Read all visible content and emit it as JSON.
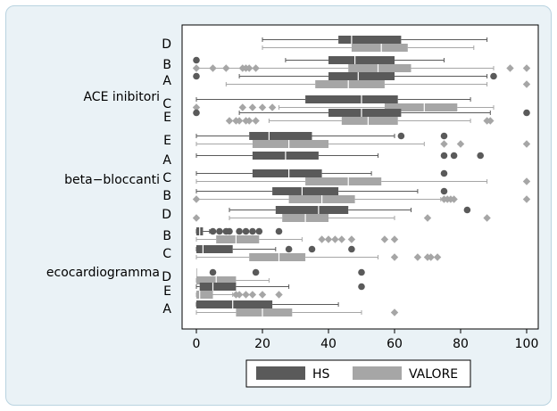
{
  "chart_data": {
    "type": "boxplot",
    "orientation": "horizontal",
    "x_ticks": [
      0,
      20,
      40,
      60,
      80,
      100
    ],
    "xlim": [
      -4,
      103
    ],
    "grid": false,
    "legend": {
      "position": "bottom",
      "entries": [
        {
          "label": "HS",
          "color": "#5a5a5a"
        },
        {
          "label": "VALORE",
          "color": "#a6a6a6"
        }
      ]
    },
    "series_colors": {
      "HS": "#5a5a5a",
      "VALORE": "#a6a6a6"
    },
    "groups": [
      {
        "name": "ACE inibitori",
        "categories": [
          {
            "label": "D",
            "HS": {
              "wl": 20,
              "q1": 43,
              "med": 47,
              "q3": 62,
              "wh": 88,
              "outliers": []
            },
            "VALORE": {
              "wl": 20,
              "q1": 47,
              "med": 56,
              "q3": 64,
              "wh": 84,
              "outliers": []
            }
          },
          {
            "label": "B",
            "HS": {
              "wl": 27,
              "q1": 40,
              "med": 48,
              "q3": 60,
              "wh": 75,
              "outliers": [
                0
              ]
            },
            "VALORE": {
              "wl": 0,
              "q1": 46,
              "med": 55,
              "q3": 65,
              "wh": 90,
              "outliers": [
                0,
                5,
                9,
                14,
                15,
                16,
                18,
                95,
                100
              ]
            }
          },
          {
            "label": "A",
            "HS": {
              "wl": 13,
              "q1": 40,
              "med": 49,
              "q3": 60,
              "wh": 88,
              "outliers": [
                0,
                90
              ]
            },
            "VALORE": {
              "wl": 9,
              "q1": 36,
              "med": 46,
              "q3": 57,
              "wh": 88,
              "outliers": [
                100
              ]
            }
          },
          {
            "label": "C",
            "HS": {
              "wl": 0,
              "q1": 33,
              "med": 50,
              "q3": 61,
              "wh": 83,
              "outliers": []
            },
            "VALORE": {
              "wl": 25,
              "q1": 57,
              "med": 69,
              "q3": 79,
              "wh": 90,
              "outliers": [
                0,
                14,
                17,
                20,
                23
              ]
            }
          },
          {
            "label": "E",
            "HS": {
              "wl": 13,
              "q1": 40,
              "med": 50,
              "q3": 62,
              "wh": 89,
              "outliers": [
                0,
                100
              ]
            },
            "VALORE": {
              "wl": 22,
              "q1": 44,
              "med": 52,
              "q3": 61,
              "wh": 83,
              "outliers": [
                10,
                12,
                13,
                15,
                16,
                18,
                88,
                89
              ]
            }
          }
        ]
      },
      {
        "name": "beta−bloccanti",
        "categories": [
          {
            "label": "E",
            "HS": {
              "wl": 0,
              "q1": 16,
              "med": 22,
              "q3": 35,
              "wh": 60,
              "outliers": [
                62,
                75
              ]
            },
            "VALORE": {
              "wl": 0,
              "q1": 17,
              "med": 28,
              "q3": 40,
              "wh": 69,
              "outliers": [
                75,
                80,
                100
              ]
            }
          },
          {
            "label": "A",
            "HS": {
              "wl": 0,
              "q1": 17,
              "med": 27,
              "q3": 37,
              "wh": 55,
              "outliers": [
                75,
                78,
                86
              ]
            }
          },
          {
            "label": "C",
            "HS": {
              "wl": 0,
              "q1": 17,
              "med": 28,
              "q3": 38,
              "wh": 53,
              "outliers": [
                75
              ]
            },
            "VALORE": {
              "wl": 0,
              "q1": 33,
              "med": 46,
              "q3": 56,
              "wh": 88,
              "outliers": [
                100
              ]
            }
          },
          {
            "label": "B",
            "HS": {
              "wl": 0,
              "q1": 23,
              "med": 32,
              "q3": 43,
              "wh": 67,
              "outliers": [
                75
              ]
            },
            "VALORE": {
              "wl": 0,
              "q1": 28,
              "med": 38,
              "q3": 48,
              "wh": 74,
              "outliers": [
                0,
                75,
                76,
                77,
                78,
                100
              ]
            }
          },
          {
            "label": "D",
            "HS": {
              "wl": 10,
              "q1": 24,
              "med": 37,
              "q3": 46,
              "wh": 65,
              "outliers": [
                82
              ]
            },
            "VALORE": {
              "wl": 10,
              "q1": 26,
              "med": 33,
              "q3": 40,
              "wh": 60,
              "outliers": [
                0,
                70,
                88
              ]
            }
          }
        ]
      },
      {
        "name": "ecocardiogramma",
        "categories": [
          {
            "label": "B",
            "HS": {
              "wl": 0,
              "q1": 0,
              "med": 1,
              "q3": 2,
              "wh": 4,
              "outliers": [
                5,
                7,
                9,
                10,
                13,
                15,
                17,
                19,
                25
              ]
            },
            "VALORE": {
              "wl": 0,
              "q1": 6,
              "med": 12,
              "q3": 19,
              "wh": 32,
              "outliers": [
                38,
                40,
                42,
                44,
                47,
                57,
                60
              ]
            }
          },
          {
            "label": "C",
            "HS": {
              "wl": 0,
              "q1": 0,
              "med": 2,
              "q3": 11,
              "wh": 24,
              "outliers": [
                28,
                35,
                47
              ]
            },
            "VALORE": {
              "wl": 0,
              "q1": 16,
              "med": 25,
              "q3": 33,
              "wh": 55,
              "outliers": [
                60,
                67,
                70,
                71,
                73
              ]
            }
          },
          {
            "label": "D",
            "HS": {
              "wl": 0,
              "q1": 0,
              "med": 0,
              "q3": 0,
              "wh": 0,
              "outliers": [
                5,
                18,
                50
              ]
            },
            "VALORE": {
              "wl": 0,
              "q1": 0,
              "med": 6,
              "q3": 12,
              "wh": 22,
              "outliers": []
            }
          },
          {
            "label": "E",
            "HS": {
              "wl": 0,
              "q1": 1,
              "med": 5,
              "q3": 12,
              "wh": 28,
              "outliers": [
                50
              ]
            },
            "VALORE": {
              "wl": 0,
              "q1": 0,
              "med": 1,
              "q3": 5,
              "wh": 11,
              "outliers": [
                12,
                13,
                15,
                17,
                20,
                25
              ]
            }
          },
          {
            "label": "A",
            "HS": {
              "wl": 0,
              "q1": 0,
              "med": 11,
              "q3": 23,
              "wh": 43,
              "outliers": []
            },
            "VALORE": {
              "wl": 0,
              "q1": 12,
              "med": 20,
              "q3": 29,
              "wh": 50,
              "outliers": [
                60
              ]
            }
          }
        ]
      }
    ]
  }
}
